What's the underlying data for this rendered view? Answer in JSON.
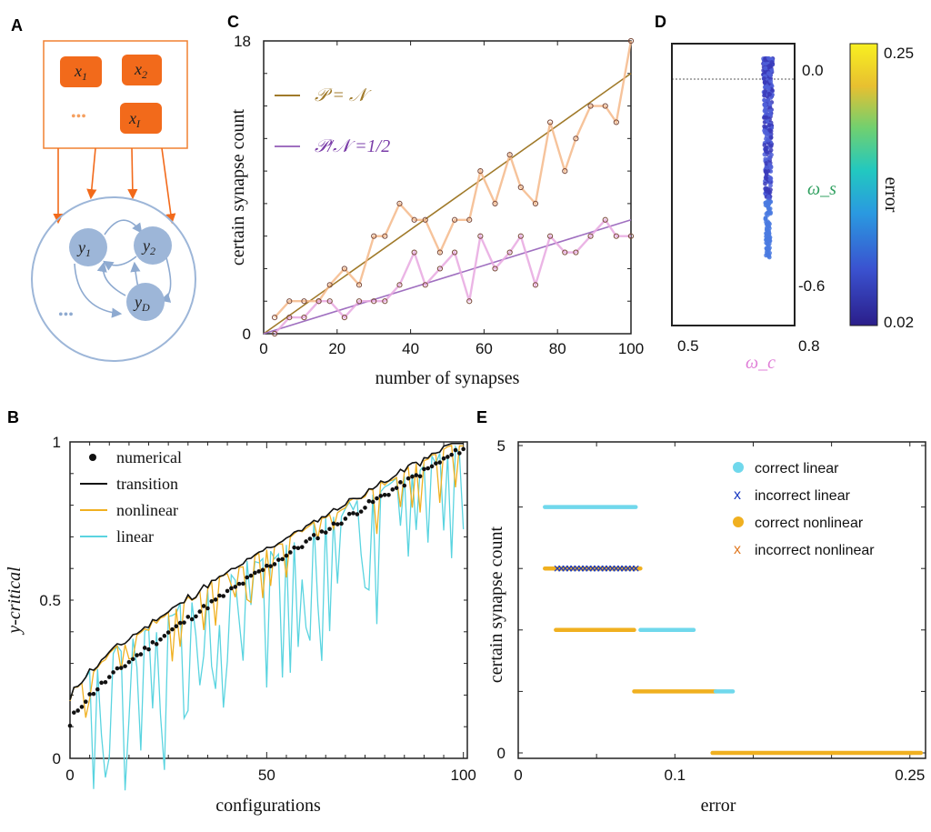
{
  "panels": {
    "A": {
      "label": "A",
      "inputs": [
        {
          "name": "x",
          "sub": "1"
        },
        {
          "name": "x",
          "sub": "2"
        },
        {
          "name": "x",
          "sub": "I"
        }
      ],
      "input_dots": "•••",
      "nodes": [
        {
          "name": "y",
          "sub": "1"
        },
        {
          "name": "y",
          "sub": "2"
        },
        {
          "name": "y",
          "sub": "D"
        }
      ],
      "node_dots": "•••",
      "colors": {
        "input": "#f26a1b",
        "node": "#9db6d8",
        "edge": "#8eaad0",
        "box": "#f08030"
      }
    },
    "B": {
      "label": "B",
      "chart_data": {
        "type": "line",
        "xlabel": "configurations",
        "ylabel": "y-critical",
        "xlim": [
          0,
          101
        ],
        "ylim": [
          0,
          1
        ],
        "xticks": [
          "0",
          "50",
          "100"
        ],
        "yticks": [
          "0",
          "0.5",
          "1"
        ],
        "legend": [
          {
            "name": "numerical",
            "marker": "dot",
            "color": "#111111"
          },
          {
            "name": "transition",
            "marker": "line",
            "color": "#111111"
          },
          {
            "name": "nonlinear",
            "marker": "line",
            "color": "#f0b020"
          },
          {
            "name": "linear",
            "marker": "line",
            "color": "#5ad4e0"
          }
        ],
        "numerical_start": 0.1,
        "numerical_end": 0.98,
        "transition_offset": 0.08
      }
    },
    "C": {
      "label": "C",
      "chart_data": {
        "type": "scatter",
        "xlabel": "number of synapses",
        "ylabel": "certain synapse count",
        "xlim": [
          0,
          100
        ],
        "ylim": [
          0,
          18
        ],
        "xticks": [
          "0",
          "20",
          "40",
          "60",
          "80",
          "100"
        ],
        "yticks": [
          "0",
          "18"
        ],
        "series": [
          {
            "name": "𝒫 = 𝒩",
            "color": "#a07a2a",
            "point_color": "#f5b98a",
            "x": [
              3,
              7,
              11,
              15,
              18,
              22,
              26,
              30,
              33,
              37,
              41,
              44,
              48,
              52,
              56,
              59,
              63,
              67,
              70,
              74,
              78,
              82,
              85,
              89,
              93,
              96,
              100
            ],
            "y": [
              1,
              2,
              2,
              2,
              3,
              4,
              3,
              6,
              6,
              8,
              7,
              7,
              5,
              7,
              7,
              10,
              8,
              11,
              9,
              8,
              13,
              10,
              12,
              14,
              14,
              13,
              18
            ],
            "fit": [
              0,
              16
            ]
          },
          {
            "name": "𝒫/𝒩 =1/2",
            "color": "#a070c0",
            "point_color": "#e8a8e0",
            "x": [
              3,
              7,
              11,
              15,
              18,
              22,
              26,
              30,
              33,
              37,
              41,
              44,
              48,
              52,
              56,
              59,
              63,
              67,
              70,
              74,
              78,
              82,
              85,
              89,
              93,
              96,
              100
            ],
            "y": [
              0,
              1,
              1,
              2,
              2,
              1,
              2,
              2,
              2,
              3,
              5,
              3,
              4,
              5,
              2,
              6,
              4,
              5,
              6,
              3,
              6,
              5,
              5,
              6,
              7,
              6,
              6
            ],
            "fit": [
              0,
              7
            ]
          }
        ]
      }
    },
    "D": {
      "label": "D",
      "chart_data": {
        "type": "scatter",
        "xlabel": "ω_c",
        "ylabel": "ω_s",
        "xlim": [
          0.5,
          0.8
        ],
        "ylim": [
          -0.7,
          0.06
        ],
        "xticks": [
          "0.5",
          "0.8"
        ],
        "yticks": [
          "0.0",
          "-0.6"
        ],
        "colorbar": {
          "label": "error",
          "min": "0.02",
          "max": "0.25"
        },
        "cluster_x_center": 0.735,
        "cluster_y_range": [
          -0.52,
          0.02
        ]
      }
    },
    "E": {
      "label": "E",
      "chart_data": {
        "type": "scatter",
        "xlabel": "error",
        "ylabel": "certain synapse count",
        "xlim": [
          0,
          0.26
        ],
        "ylim": [
          0,
          5
        ],
        "xticks": [
          "0",
          "0.1",
          "0.25"
        ],
        "yticks": [
          "0",
          "5"
        ],
        "legend": [
          {
            "name": "correct linear",
            "marker": "dot",
            "color": "#70d8ec"
          },
          {
            "name": "incorrect linear",
            "marker": "x",
            "color": "#1838c0"
          },
          {
            "name": "correct nonlinear",
            "marker": "dot",
            "color": "#f0b020"
          },
          {
            "name": "incorrect nonlinear",
            "marker": "x",
            "color": "#e07820"
          }
        ],
        "bands": [
          {
            "y": 4,
            "kind": "correct linear",
            "x0": 0.017,
            "x1": 0.075
          },
          {
            "y": 3,
            "kind": "correct nonlinear",
            "x0": 0.017,
            "x1": 0.078
          },
          {
            "y": 3,
            "kind": "incorrect linear",
            "x0": 0.025,
            "x1": 0.075
          },
          {
            "y": 2,
            "kind": "correct nonlinear",
            "x0": 0.024,
            "x1": 0.074
          },
          {
            "y": 2,
            "kind": "correct linear",
            "x0": 0.078,
            "x1": 0.112
          },
          {
            "y": 1,
            "kind": "correct nonlinear",
            "x0": 0.074,
            "x1": 0.126
          },
          {
            "y": 1,
            "kind": "correct linear",
            "x0": 0.126,
            "x1": 0.137
          },
          {
            "y": 0,
            "kind": "correct nonlinear",
            "x0": 0.124,
            "x1": 0.257
          }
        ]
      }
    }
  }
}
